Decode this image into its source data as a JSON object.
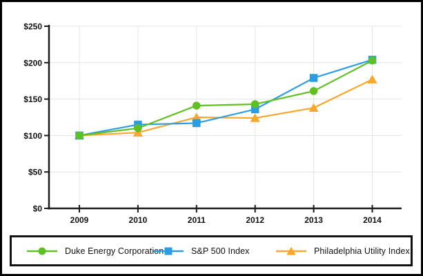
{
  "chart_data": {
    "type": "line",
    "title": "",
    "categories": [
      "2009",
      "2010",
      "2011",
      "2012",
      "2013",
      "2014"
    ],
    "y_ticks": [
      0,
      50,
      100,
      150,
      200,
      250
    ],
    "y_tick_labels": [
      "$0",
      "$50",
      "$100",
      "$150",
      "$200",
      "$250"
    ],
    "ylim": [
      0,
      250
    ],
    "grid": true,
    "legend_position": "bottom-box",
    "series": [
      {
        "name": "Duke Energy Corporation",
        "marker": "circle",
        "color": "#5fc121",
        "values": [
          100,
          110,
          141,
          143,
          161,
          203
        ]
      },
      {
        "name": "S&P 500 Index",
        "marker": "square",
        "color": "#2b9de4",
        "values": [
          100,
          115,
          117,
          136,
          179,
          204
        ]
      },
      {
        "name": "Philadelphia Utility Index",
        "marker": "triangle",
        "color": "#f9a72a",
        "values": [
          100,
          104,
          125,
          124,
          138,
          177
        ]
      }
    ],
    "axis_color": "#1a1a1a",
    "gridline_color": "#e4e4e4",
    "label_color": "#111111"
  }
}
